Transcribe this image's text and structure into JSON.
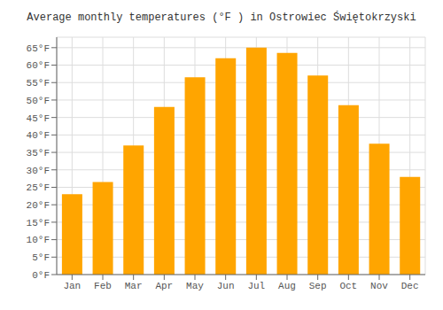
{
  "chart_data": {
    "type": "bar",
    "title": "Average monthly temperatures (°F ) in Ostrowiec Świętokrzyski",
    "categories": [
      "Jan",
      "Feb",
      "Mar",
      "Apr",
      "May",
      "Jun",
      "Jul",
      "Aug",
      "Sep",
      "Oct",
      "Nov",
      "Dec"
    ],
    "values": [
      23.0,
      26.5,
      37.0,
      48.0,
      56.5,
      62.0,
      65.0,
      63.5,
      57.0,
      48.5,
      37.5,
      28.0
    ],
    "color": "#FFA500",
    "ylim": [
      0,
      68
    ],
    "yticks": [
      {
        "value": 0,
        "label": "0°F"
      },
      {
        "value": 5,
        "label": "5°F"
      },
      {
        "value": 10,
        "label": "10°F"
      },
      {
        "value": 15,
        "label": "15°F"
      },
      {
        "value": 20,
        "label": "20°F"
      },
      {
        "value": 25,
        "label": "25°F"
      },
      {
        "value": 30,
        "label": "30°F"
      },
      {
        "value": 35,
        "label": "35°F"
      },
      {
        "value": 40,
        "label": "40°F"
      },
      {
        "value": 45,
        "label": "45°F"
      },
      {
        "value": 50,
        "label": "50°F"
      },
      {
        "value": 55,
        "label": "55°F"
      },
      {
        "value": 60,
        "label": "60°F"
      },
      {
        "value": 65,
        "label": "65°F"
      }
    ],
    "grid": true
  }
}
